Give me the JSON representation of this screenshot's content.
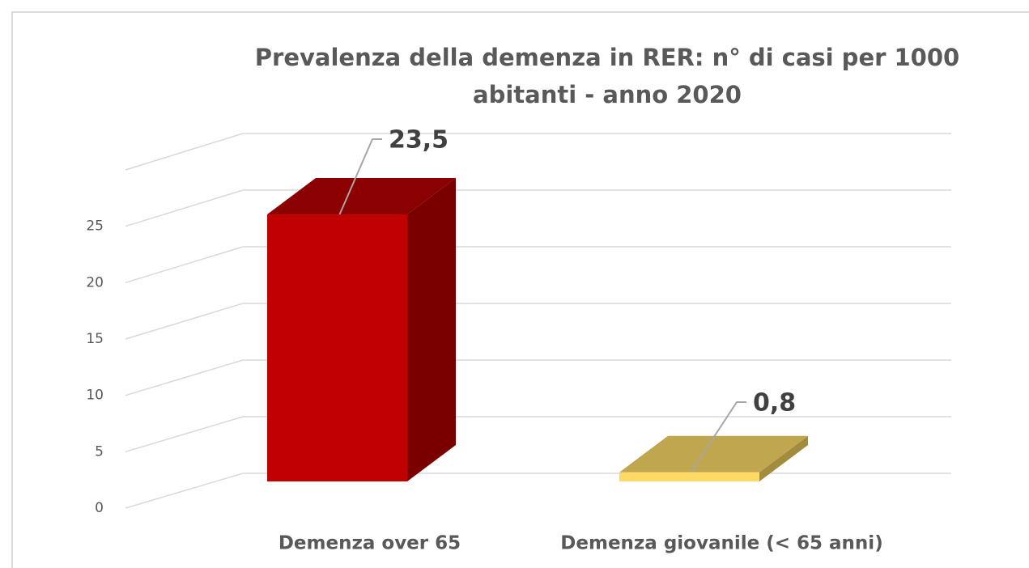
{
  "chart_data": {
    "type": "bar3d",
    "title": "Prevalenza della demenza in RER: n° di casi per 1000 abitanti - anno 2020",
    "categories": [
      "Demenza over 65",
      "Demenza giovanile (< 65 anni)"
    ],
    "values": [
      23.5,
      0.8
    ],
    "value_labels": [
      "23,5",
      "0,8"
    ],
    "colors": [
      {
        "front": "#c00000",
        "top": "#8b0000",
        "side": "#7a0000"
      },
      {
        "front": "#ffd966",
        "top": "#c0a64f",
        "side": "#a38b3d"
      }
    ],
    "ylim": [
      0,
      30
    ],
    "yticks": [
      0,
      5,
      10,
      15,
      20,
      25
    ],
    "grid": true
  }
}
